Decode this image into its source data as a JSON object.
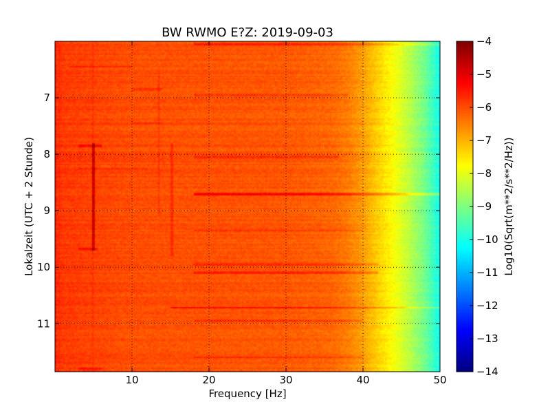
{
  "chart_data": {
    "type": "heatmap",
    "title": "BW RWMO E?Z: 2019-09-03",
    "xlabel": "Frequency [Hz]",
    "ylabel": "Lokalzeit (UTC + 2 Stunde)",
    "xlim": [
      0,
      50
    ],
    "ylim": [
      6.0,
      11.85
    ],
    "y_inverted": true,
    "x_ticks": [
      10,
      20,
      30,
      40,
      50
    ],
    "x_tick_labels": [
      "10",
      "20",
      "30",
      "40",
      "50"
    ],
    "y_ticks": [
      7,
      8,
      9,
      10,
      11
    ],
    "y_tick_labels": [
      "7",
      "8",
      "9",
      "10",
      "11"
    ],
    "grid": true,
    "colorbar": {
      "label": "Log10(Sqrt(m**2/s**2/Hz))",
      "range": [
        -14,
        -4
      ],
      "ticks": [
        -4,
        -5,
        -6,
        -7,
        -8,
        -9,
        -10,
        -11,
        -12,
        -13,
        -14
      ],
      "tick_labels": [
        "−4",
        "−5",
        "−6",
        "−7",
        "−8",
        "−9",
        "−10",
        "−11",
        "−12",
        "−13",
        "−14"
      ],
      "colormap": "jet"
    },
    "frequency_profile": {
      "frequency_hz": [
        0,
        1,
        5,
        10,
        20,
        30,
        36,
        38,
        40,
        42,
        44,
        46,
        48,
        49,
        50
      ],
      "log10_amplitude": [
        -5.6,
        -5.8,
        -5.9,
        -6.0,
        -6.05,
        -6.1,
        -6.25,
        -6.45,
        -6.8,
        -7.3,
        -7.8,
        -8.4,
        -9.1,
        -9.6,
        -10.1
      ]
    },
    "horizontal_bands": [
      {
        "time": 6.05,
        "f_start": 18,
        "f_end": 50,
        "delta": 0.5
      },
      {
        "time": 6.45,
        "f_start": 2,
        "f_end": 10,
        "delta": 0.35
      },
      {
        "time": 6.85,
        "f_start": 10,
        "f_end": 14,
        "delta": 0.35
      },
      {
        "time": 6.95,
        "f_start": 18,
        "f_end": 38,
        "delta": 0.3
      },
      {
        "time": 7.45,
        "f_start": 10,
        "f_end": 14,
        "delta": 0.3
      },
      {
        "time": 7.85,
        "f_start": 3,
        "f_end": 6,
        "delta": 0.5
      },
      {
        "time": 8.05,
        "f_start": 18,
        "f_end": 37,
        "delta": 0.3
      },
      {
        "time": 8.25,
        "f_start": 3,
        "f_end": 12,
        "delta": 0.3
      },
      {
        "time": 8.7,
        "f_start": 18,
        "f_end": 50,
        "delta": 0.9
      },
      {
        "time": 9.35,
        "f_start": 18,
        "f_end": 40,
        "delta": 0.45
      },
      {
        "time": 9.68,
        "f_start": 3,
        "f_end": 5.5,
        "delta": 0.5
      },
      {
        "time": 9.95,
        "f_start": 18,
        "f_end": 42,
        "delta": 0.4
      },
      {
        "time": 10.1,
        "f_start": 18,
        "f_end": 42,
        "delta": 0.55
      },
      {
        "time": 10.72,
        "f_start": 15,
        "f_end": 50,
        "delta": 0.9
      },
      {
        "time": 10.95,
        "f_start": 18,
        "f_end": 40,
        "delta": 0.35
      },
      {
        "time": 11.6,
        "f_start": 18,
        "f_end": 40,
        "delta": 0.4
      },
      {
        "time": 11.8,
        "f_start": 3,
        "f_end": 6,
        "delta": 0.4
      }
    ],
    "vertical_lines": [
      {
        "frequency": 5.0,
        "t_start": 7.8,
        "t_end": 9.7,
        "delta": 1.0
      },
      {
        "frequency": 4.9,
        "t_start": 6.0,
        "t_end": 11.85,
        "delta": 0.2
      },
      {
        "frequency": 13.5,
        "t_start": 6.5,
        "t_end": 9.1,
        "delta": 0.3
      },
      {
        "frequency": 15.2,
        "t_start": 7.8,
        "t_end": 9.8,
        "delta": 0.35
      }
    ]
  }
}
